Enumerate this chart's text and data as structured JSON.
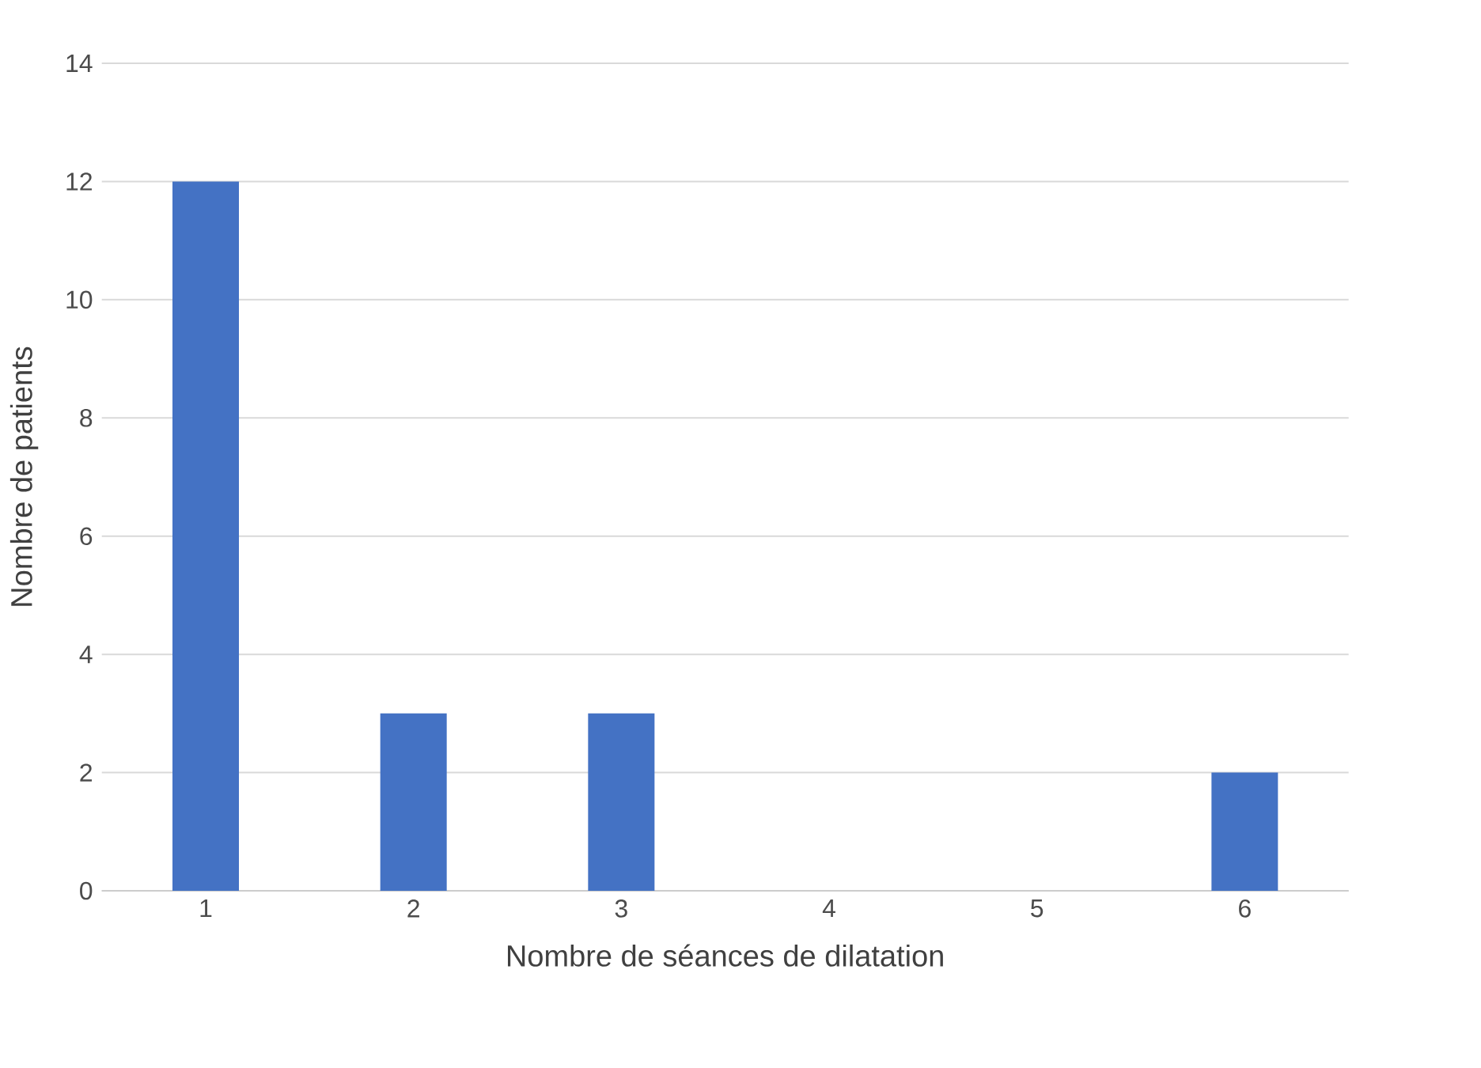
{
  "chart_data": {
    "type": "bar",
    "xlabel": "Nombre de séances de dilatation",
    "ylabel": "Nombre de patients",
    "categories": [
      "1",
      "2",
      "3",
      "4",
      "5",
      "6"
    ],
    "values": [
      12,
      3,
      3,
      0,
      0,
      2
    ],
    "color": "#4472c4",
    "ylim": [
      0,
      14
    ],
    "yticks": [
      0,
      2,
      4,
      6,
      8,
      10,
      12,
      14
    ],
    "grid": "y"
  }
}
